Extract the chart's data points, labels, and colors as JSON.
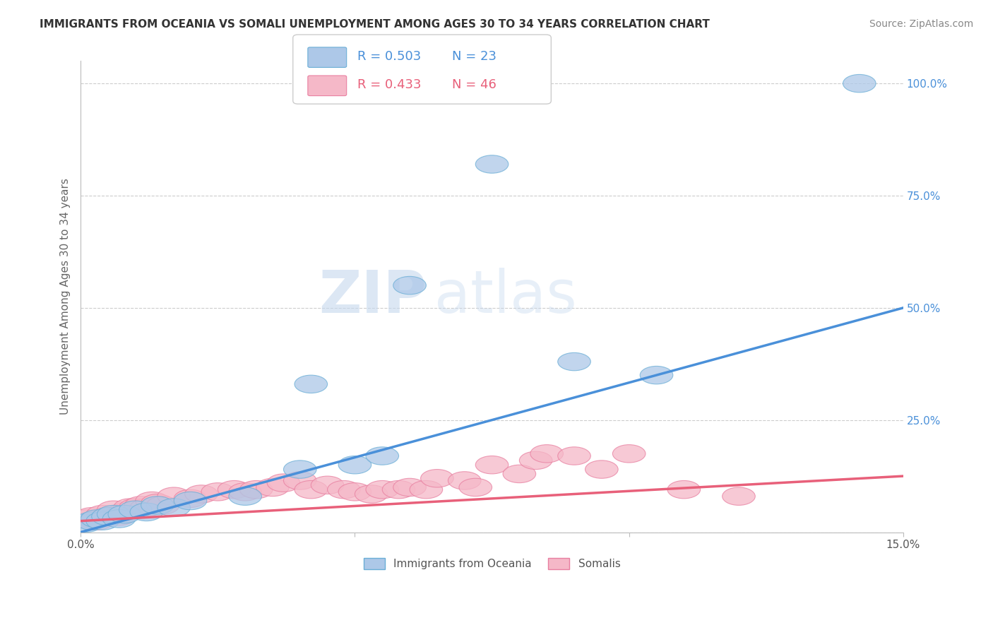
{
  "title": "IMMIGRANTS FROM OCEANIA VS SOMALI UNEMPLOYMENT AMONG AGES 30 TO 34 YEARS CORRELATION CHART",
  "source": "Source: ZipAtlas.com",
  "ylabel": "Unemployment Among Ages 30 to 34 years",
  "xlim": [
    0.0,
    0.15
  ],
  "ylim": [
    0.0,
    1.05
  ],
  "yticks": [
    0.0,
    0.25,
    0.5,
    0.75,
    1.0
  ],
  "yticklabels": [
    "",
    "25.0%",
    "50.0%",
    "75.0%",
    "100.0%"
  ],
  "series1_color": "#adc8e8",
  "series1_edge": "#6aaed6",
  "series1_line_color": "#4a90d9",
  "series1_label": "Immigrants from Oceania",
  "series1_R": 0.503,
  "series1_N": 23,
  "series2_color": "#f5b8c8",
  "series2_edge": "#e87fa0",
  "series2_line_color": "#e8607a",
  "series2_label": "Somalis",
  "series2_R": 0.433,
  "series2_N": 46,
  "watermark_zip": "ZIP",
  "watermark_atlas": "atlas",
  "background_color": "#ffffff",
  "grid_color": "#cccccc",
  "series1_x": [
    0.001,
    0.002,
    0.003,
    0.004,
    0.005,
    0.006,
    0.007,
    0.008,
    0.01,
    0.012,
    0.014,
    0.017,
    0.02,
    0.03,
    0.04,
    0.042,
    0.05,
    0.055,
    0.06,
    0.075,
    0.09,
    0.105,
    0.142
  ],
  "series1_y": [
    0.02,
    0.025,
    0.03,
    0.025,
    0.035,
    0.04,
    0.03,
    0.04,
    0.05,
    0.045,
    0.06,
    0.055,
    0.07,
    0.08,
    0.14,
    0.33,
    0.15,
    0.17,
    0.55,
    0.82,
    0.38,
    0.35,
    1.0
  ],
  "series2_x": [
    0.001,
    0.002,
    0.003,
    0.004,
    0.005,
    0.006,
    0.007,
    0.008,
    0.009,
    0.01,
    0.011,
    0.012,
    0.013,
    0.014,
    0.015,
    0.017,
    0.02,
    0.022,
    0.025,
    0.028,
    0.03,
    0.032,
    0.035,
    0.037,
    0.04,
    0.042,
    0.045,
    0.048,
    0.05,
    0.053,
    0.055,
    0.058,
    0.06,
    0.063,
    0.065,
    0.07,
    0.072,
    0.075,
    0.08,
    0.083,
    0.085,
    0.09,
    0.095,
    0.1,
    0.11,
    0.12
  ],
  "series2_y": [
    0.03,
    0.035,
    0.025,
    0.04,
    0.035,
    0.05,
    0.035,
    0.045,
    0.055,
    0.055,
    0.06,
    0.055,
    0.07,
    0.065,
    0.06,
    0.08,
    0.075,
    0.085,
    0.09,
    0.095,
    0.09,
    0.095,
    0.1,
    0.11,
    0.115,
    0.095,
    0.105,
    0.095,
    0.09,
    0.085,
    0.095,
    0.095,
    0.1,
    0.095,
    0.12,
    0.115,
    0.1,
    0.15,
    0.13,
    0.16,
    0.175,
    0.17,
    0.14,
    0.175,
    0.095,
    0.08
  ],
  "blue_line_x": [
    0.0,
    0.15
  ],
  "blue_line_y": [
    0.0,
    0.5
  ],
  "pink_line_x": [
    0.0,
    0.15
  ],
  "pink_line_y": [
    0.025,
    0.125
  ]
}
